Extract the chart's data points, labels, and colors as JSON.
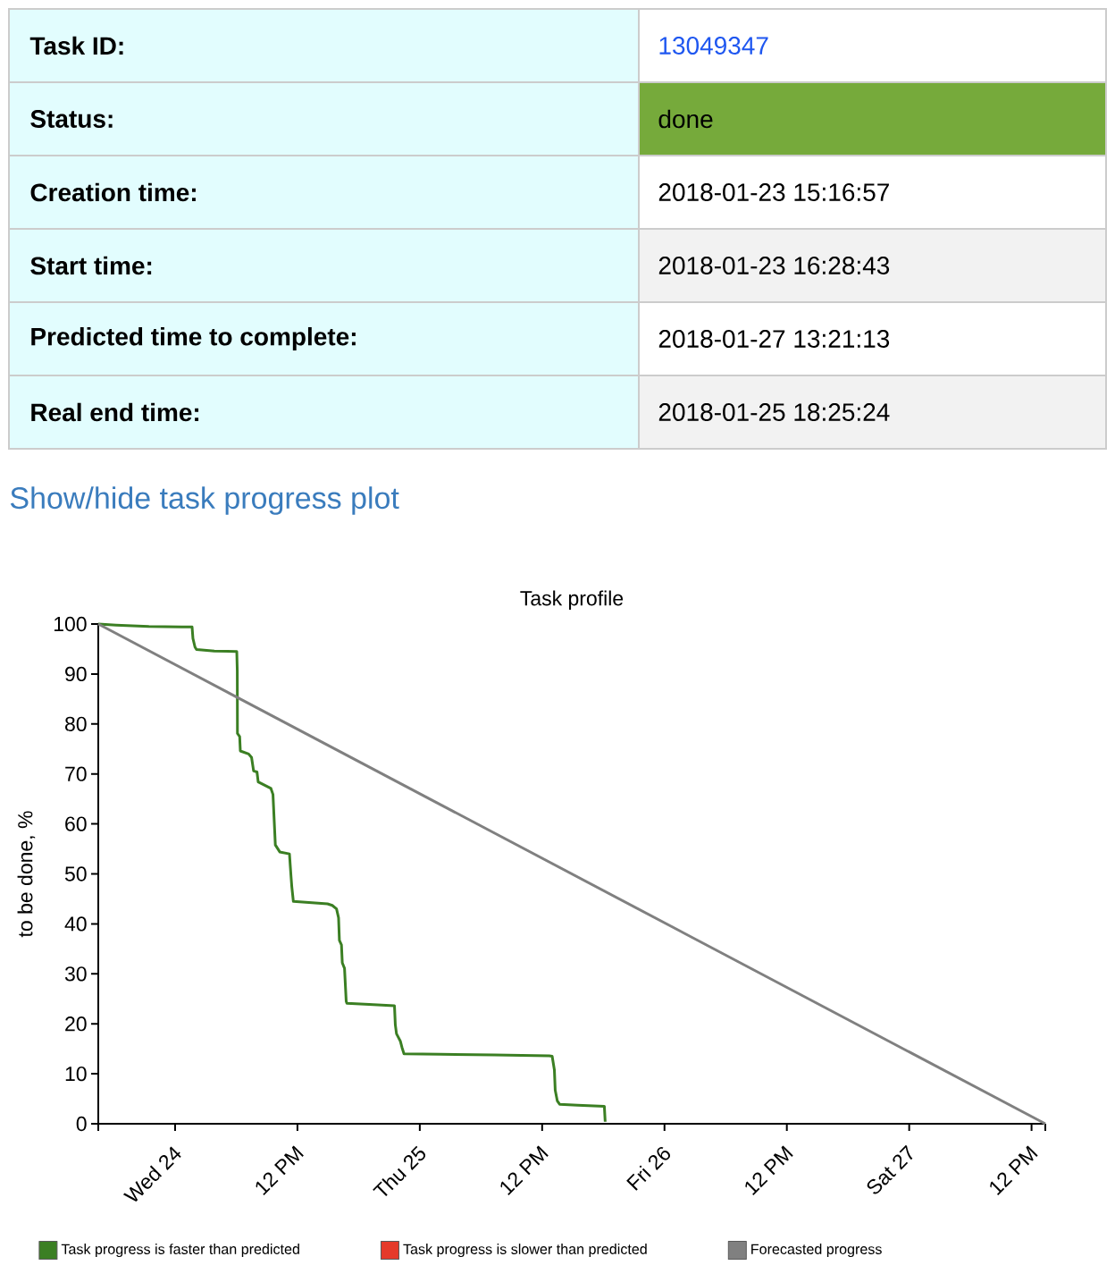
{
  "chart_data": [
    {
      "type": "other",
      "annotations": [
        "Task ID:",
        "13049347",
        "Status:",
        "done",
        "Creation time:",
        "2018-01-23 15:16:57",
        "Start time:",
        "2018-01-23 16:28:43",
        "Predicted time to complete:",
        "2018-01-27 13:21:13",
        "Real end time:",
        "2018-01-25 18:25:24",
        "Show/hide task progress plot"
      ]
    },
    {
      "type": "line",
      "title": "Task profile",
      "ylabel": "to be done, %",
      "xlim": [
        "2018-01-23T16:28",
        "2018-01-27T13:21"
      ],
      "xticks": [
        {
          "value": "2018-01-23T16:28",
          "label": null
        },
        {
          "value": "2018-01-24",
          "label": "Wed 24"
        },
        {
          "value": "2018-01-24T12:00",
          "label": "12 PM"
        },
        {
          "value": "2018-01-25",
          "label": "Thu 25"
        },
        {
          "value": "2018-01-25T12:00",
          "label": "12 PM"
        },
        {
          "value": "2018-01-26",
          "label": "Fri 26"
        },
        {
          "value": "2018-01-26T12:00",
          "label": "12 PM"
        },
        {
          "value": "2018-01-27",
          "label": "Sat 27"
        },
        {
          "value": "2018-01-27T12:00",
          "label": "12 PM"
        },
        {
          "value": "2018-01-27T13:21",
          "label": null
        }
      ],
      "ylim": [
        0,
        100
      ],
      "yticks": [
        0,
        10,
        20,
        30,
        40,
        50,
        60,
        70,
        80,
        90,
        100
      ],
      "legend": "bottom",
      "series": [
        {
          "name": "Task progress is faster than predicted",
          "color": "#3b7f23",
          "x": [
            "2018-01-23T16:28",
            "2018-01-23T18:13",
            "2018-01-23T21:26",
            "2018-01-24T00:38",
            "2018-01-24T01:40",
            "2018-01-24T01:45",
            "2018-01-24T01:57",
            "2018-01-24T02:06",
            "2018-01-24T03:51",
            "2018-01-24T06:03",
            "2018-01-24T06:06",
            "2018-01-24T06:07",
            "2018-01-24T06:20",
            "2018-01-24T06:24",
            "2018-01-24T07:13",
            "2018-01-24T07:30",
            "2018-01-24T07:42",
            "2018-01-24T08:02",
            "2018-01-24T08:09",
            "2018-01-24T09:24",
            "2018-01-24T09:36",
            "2018-01-24T09:50",
            "2018-01-24T10:16",
            "2018-01-24T11:13",
            "2018-01-24T11:22",
            "2018-01-24T11:27",
            "2018-01-24T11:36",
            "2018-01-24T14:57",
            "2018-01-24T15:25",
            "2018-01-24T15:50",
            "2018-01-24T16:02",
            "2018-01-24T16:07",
            "2018-01-24T16:19",
            "2018-01-24T16:24",
            "2018-01-24T16:37",
            "2018-01-24T16:47",
            "2018-01-24T16:51",
            "2018-01-24T19:02",
            "2018-01-24T21:31",
            "2018-01-24T21:36",
            "2018-01-24T21:43",
            "2018-01-24T22:06",
            "2018-01-24T22:15",
            "2018-01-24T22:27",
            "2018-01-25T02:02",
            "2018-01-25T07:18",
            "2018-01-25T12:42",
            "2018-01-25T12:59",
            "2018-01-25T13:12",
            "2018-01-25T13:17",
            "2018-01-25T13:29",
            "2018-01-25T13:43",
            "2018-01-25T15:29",
            "2018-01-25T18:06",
            "2018-01-25T18:11"
          ],
          "values": [
            100,
            99.8,
            99.5,
            99.4,
            99.4,
            97.1,
            95.4,
            94.9,
            94.6,
            94.5,
            90.6,
            78.1,
            77.5,
            74.6,
            74.0,
            73.3,
            70.6,
            70.4,
            68.4,
            67.1,
            65.9,
            55.8,
            54.4,
            54.0,
            49.6,
            47.4,
            44.5,
            44.0,
            43.7,
            43.0,
            41.2,
            36.7,
            35.8,
            32.2,
            31.1,
            24.5,
            24.1,
            23.9,
            23.6,
            19.8,
            18.0,
            16.5,
            15.3,
            14.0,
            13.9,
            13.8,
            13.6,
            13.5,
            10.8,
            6.7,
            4.6,
            3.9,
            3.7,
            3.5,
            0.4
          ]
        },
        {
          "name": "Task progress is slower than predicted",
          "color": "#e53a2a"
        },
        {
          "name": "Forecasted progress",
          "color": "#808080",
          "x": [
            "2018-01-23T16:28",
            "2018-01-27T13:21"
          ],
          "values": [
            100,
            0
          ]
        }
      ]
    }
  ]
}
